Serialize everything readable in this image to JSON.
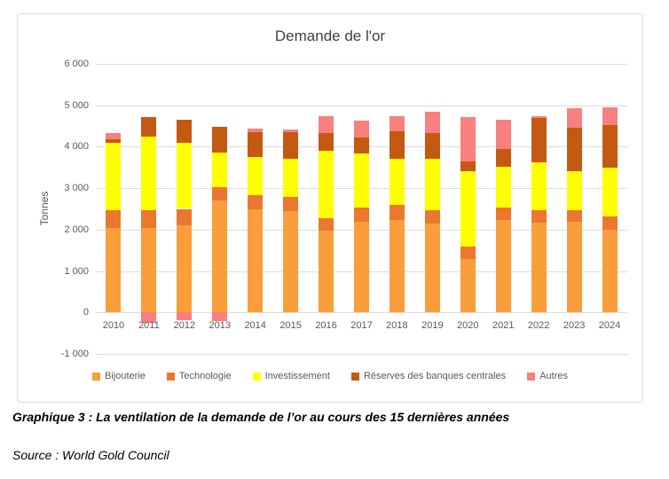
{
  "chart_data": {
    "type": "bar",
    "subtype": "stacked",
    "title": "Demande de l'or",
    "xlabel": "",
    "ylabel": "Tonnes",
    "ylim": [
      -1000,
      6000
    ],
    "yticks": [
      -1000,
      0,
      1000,
      2000,
      3000,
      4000,
      5000,
      6000
    ],
    "ytick_labels": [
      "-1 000",
      "0",
      "1 000",
      "2 000",
      "3 000",
      "4 000",
      "5 000",
      "6 000"
    ],
    "grid": true,
    "legend_position": "bottom",
    "categories": [
      "2010",
      "2011",
      "2012",
      "2013",
      "2014",
      "2015",
      "2016",
      "2017",
      "2018",
      "2019",
      "2020",
      "2021",
      "2022",
      "2023",
      "2024"
    ],
    "series": [
      {
        "name": "Bijouterie",
        "color": "#FA9D3B",
        "values": [
          2030,
          2050,
          2100,
          2710,
          2490,
          2450,
          1980,
          2200,
          2230,
          2140,
          1290,
          2230,
          2160,
          2190,
          2000
        ]
      },
      {
        "name": "Technologie",
        "color": "#EB7730",
        "values": [
          430,
          410,
          400,
          320,
          340,
          340,
          290,
          340,
          360,
          320,
          300,
          300,
          300,
          280,
          310
        ]
      },
      {
        "name": "Investissement",
        "color": "#FFFF00",
        "values": [
          1640,
          1780,
          1600,
          820,
          920,
          930,
          1640,
          1300,
          1110,
          1240,
          1830,
          980,
          1160,
          930,
          1180
        ]
      },
      {
        "name": "Réserves des banques centrales",
        "color": "#C45911",
        "values": [
          80,
          480,
          560,
          630,
          600,
          630,
          430,
          390,
          680,
          620,
          230,
          430,
          1080,
          1060,
          1030
        ]
      },
      {
        "name": "Autres",
        "color": "#F8807E",
        "values": [
          150,
          -250,
          -180,
          -210,
          90,
          70,
          390,
          390,
          360,
          520,
          1070,
          720,
          30,
          470,
          430
        ]
      }
    ]
  },
  "caption": {
    "text": "Graphique 3 : La ventilation de la demande de l’or au cours des 15 dernières années"
  },
  "source": {
    "text": "Source : World Gold Council"
  },
  "colors": {
    "grid": "#DCDCDC",
    "border": "#D9D9D9",
    "axis_text": "#595959",
    "title_text": "#404040"
  }
}
